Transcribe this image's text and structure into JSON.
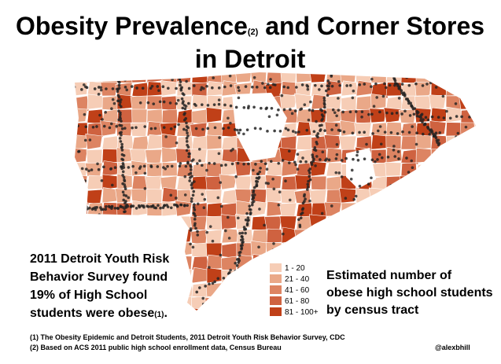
{
  "title": {
    "line1_start": "Obesity Prevalence",
    "line1_sup": "(2)",
    "line1_end": "and Corner Stores",
    "line2": "in Detroit"
  },
  "note": {
    "lines": [
      "2011 Detroit Youth Risk",
      "Behavior Survey found",
      "19% of High School",
      "students were obese"
    ],
    "sup": "(1)",
    "end": "."
  },
  "legend": {
    "title_lines": [
      "Estimated number of",
      "obese high school students",
      "by census tract"
    ],
    "items": [
      {
        "label": "1 - 20",
        "color": "#f6cdb6"
      },
      {
        "label": "21 - 40",
        "color": "#eaa888"
      },
      {
        "label": "41 - 60",
        "color": "#dd8462"
      },
      {
        "label": "61 - 80",
        "color": "#cf6240"
      },
      {
        "label": "81 - 100+",
        "color": "#c04018"
      }
    ]
  },
  "footnotes": [
    "(1) The Obesity Epidemic and Detroit Students, 2011 Detroit Youth Risk Behavior Survey, CDC",
    "(2) Based on ACS 2011 public high school enrollment data, Census Bureau"
  ],
  "credit": "@alexbhill"
}
